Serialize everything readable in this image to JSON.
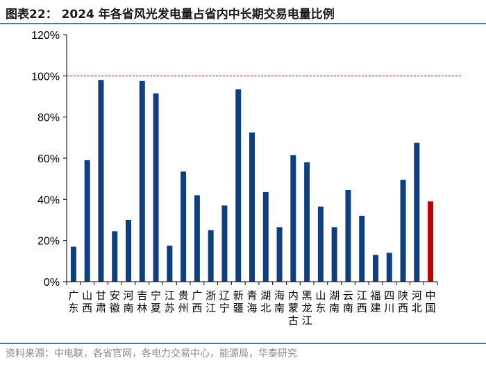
{
  "title": "图表22： 2024 年各省风光发电量占省内中长期交易电量比例",
  "source": "资料来源：中电联，各省官网，各电力交易中心，能源局，华泰研究",
  "chart_data": {
    "type": "bar",
    "categories": [
      [
        "广",
        "东"
      ],
      [
        "山",
        "西"
      ],
      [
        "甘",
        "肃"
      ],
      [
        "安",
        "徽"
      ],
      [
        "河",
        "南"
      ],
      [
        "吉",
        "林"
      ],
      [
        "宁",
        "夏"
      ],
      [
        "江",
        "苏"
      ],
      [
        "贵",
        "州"
      ],
      [
        "广",
        "西"
      ],
      [
        "浙",
        "江"
      ],
      [
        "辽",
        "宁"
      ],
      [
        "新",
        "疆"
      ],
      [
        "青",
        "海"
      ],
      [
        "湖",
        "北"
      ],
      [
        "海",
        "南"
      ],
      [
        "内",
        "蒙",
        "古"
      ],
      [
        "黑",
        "龙",
        "江"
      ],
      [
        "山",
        "东"
      ],
      [
        "湖",
        "南"
      ],
      [
        "云",
        "南"
      ],
      [
        "江",
        "西"
      ],
      [
        "福",
        "建"
      ],
      [
        "四",
        "川"
      ],
      [
        "陕",
        "西"
      ],
      [
        "河",
        "北"
      ],
      [
        "中",
        "国"
      ]
    ],
    "values": [
      17,
      59,
      98,
      24.5,
      30,
      97.5,
      91.5,
      17.5,
      53.5,
      42,
      25,
      37,
      93.5,
      72.5,
      43.5,
      26.5,
      61.5,
      58,
      36.5,
      26.5,
      44.5,
      32,
      13,
      14,
      49.5,
      67.5,
      39
    ],
    "ylim": [
      0,
      120
    ],
    "yticks": [
      "0%",
      "20%",
      "40%",
      "60%",
      "80%",
      "100%",
      "120%"
    ],
    "reference_line": 100,
    "bar_color": "#0f3f7f",
    "highlight_color": "#c00000",
    "reference_color": "#c00000"
  }
}
